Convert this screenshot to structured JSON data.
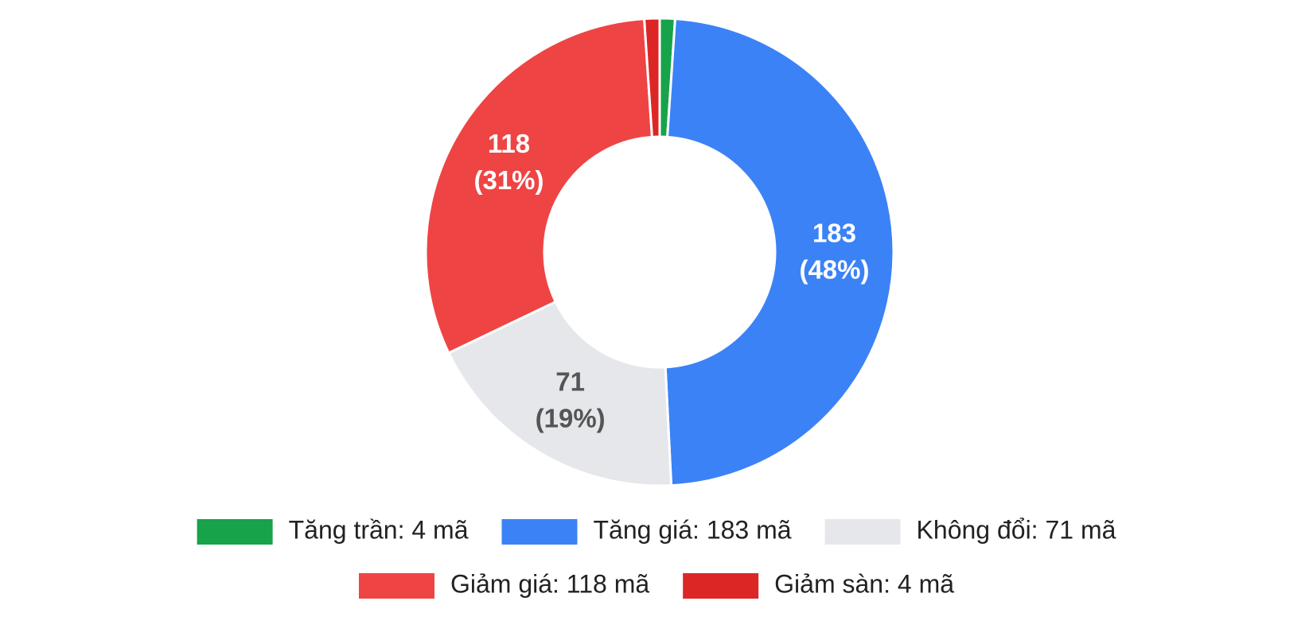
{
  "chart_data": {
    "type": "doughnut",
    "categories": [
      "Tăng trần: 4 mã",
      "Tăng giá: 183 mã",
      "Không đổi: 71 mã",
      "Giảm giá: 118 mã",
      "Giảm sàn: 4 mã"
    ],
    "values": [
      4,
      183,
      71,
      118,
      4
    ],
    "colors": [
      "#16a34a",
      "#3b82f6",
      "#e5e7eb",
      "#ef4444",
      "#dc2626"
    ],
    "value_labels": [
      null,
      [
        "183",
        "(48%)"
      ],
      [
        "71",
        "(19%)"
      ],
      [
        "118",
        "(31%)"
      ],
      null
    ],
    "label_colors": [
      null,
      "#ffffff",
      "#555555",
      "#ffffff",
      null
    ],
    "legend": "bottom"
  }
}
